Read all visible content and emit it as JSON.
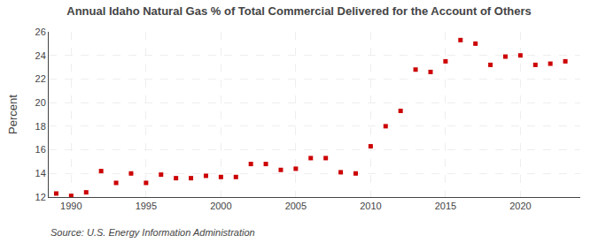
{
  "chart_data": {
    "type": "scatter",
    "title": "Annual Idaho Natural Gas % of Total Commercial Delivered for the Account of Others",
    "ylabel": "Percent",
    "annotations": [
      "Source: U.S. Energy Information Administration"
    ],
    "x": [
      1989,
      1990,
      1991,
      1992,
      1993,
      1994,
      1995,
      1996,
      1997,
      1998,
      1999,
      2000,
      2001,
      2002,
      2003,
      2004,
      2005,
      2006,
      2007,
      2008,
      2009,
      2010,
      2011,
      2012,
      2013,
      2014,
      2015,
      2016,
      2017,
      2018,
      2019,
      2020,
      2021,
      2022,
      2023
    ],
    "values": [
      12.3,
      12.1,
      12.4,
      14.2,
      13.2,
      14.0,
      13.2,
      13.9,
      13.6,
      13.6,
      13.8,
      13.7,
      13.7,
      14.8,
      14.8,
      14.3,
      14.4,
      15.3,
      15.3,
      14.1,
      14.0,
      16.3,
      18.0,
      19.3,
      22.8,
      22.6,
      23.5,
      25.3,
      25.0,
      23.2,
      23.9,
      24.0,
      23.2,
      23.3,
      23.5
    ],
    "color": "#cc0000",
    "marker": "square",
    "xlim": [
      1988.5,
      2024
    ],
    "xticks": [
      1990,
      1995,
      2000,
      2005,
      2010,
      2015,
      2020
    ],
    "ylim": [
      12,
      26
    ],
    "yticks": [
      12,
      14,
      16,
      18,
      20,
      22,
      24,
      26
    ],
    "grid": true
  }
}
